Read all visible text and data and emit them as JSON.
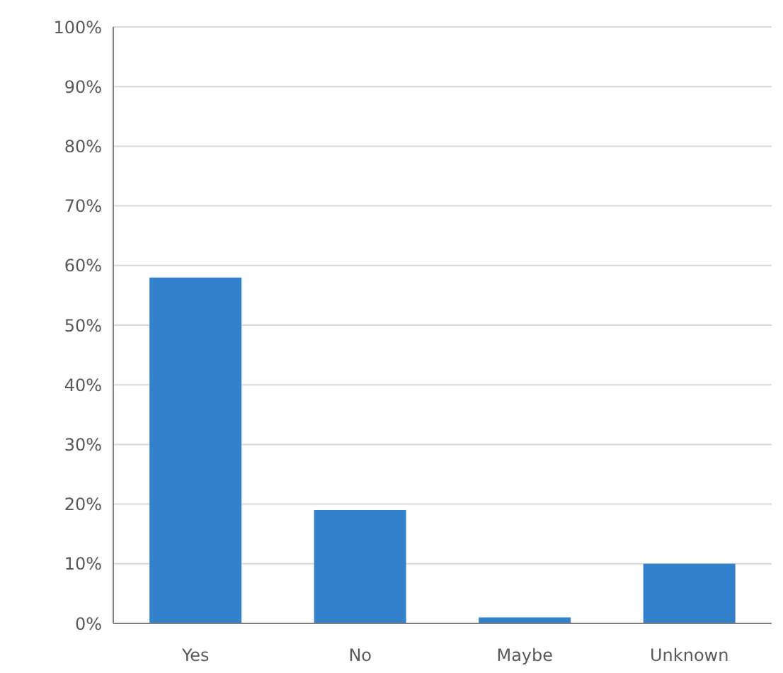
{
  "chart_data": {
    "type": "bar",
    "categories": [
      "Yes",
      "No",
      "Maybe",
      "Unknown"
    ],
    "values": [
      58,
      19,
      1,
      10
    ],
    "color": "#3481cb",
    "ylim": [
      0,
      100
    ],
    "yticks": [
      {
        "value": 0,
        "label": "0%"
      },
      {
        "value": 10,
        "label": "10%"
      },
      {
        "value": 20,
        "label": "20%"
      },
      {
        "value": 30,
        "label": "30%"
      },
      {
        "value": 40,
        "label": "40%"
      },
      {
        "value": 50,
        "label": "50%"
      },
      {
        "value": 60,
        "label": "60%"
      },
      {
        "value": 70,
        "label": "70%"
      },
      {
        "value": 80,
        "label": "80%"
      },
      {
        "value": 90,
        "label": "90%"
      },
      {
        "value": 100,
        "label": "100%"
      }
    ],
    "grid": "y"
  }
}
